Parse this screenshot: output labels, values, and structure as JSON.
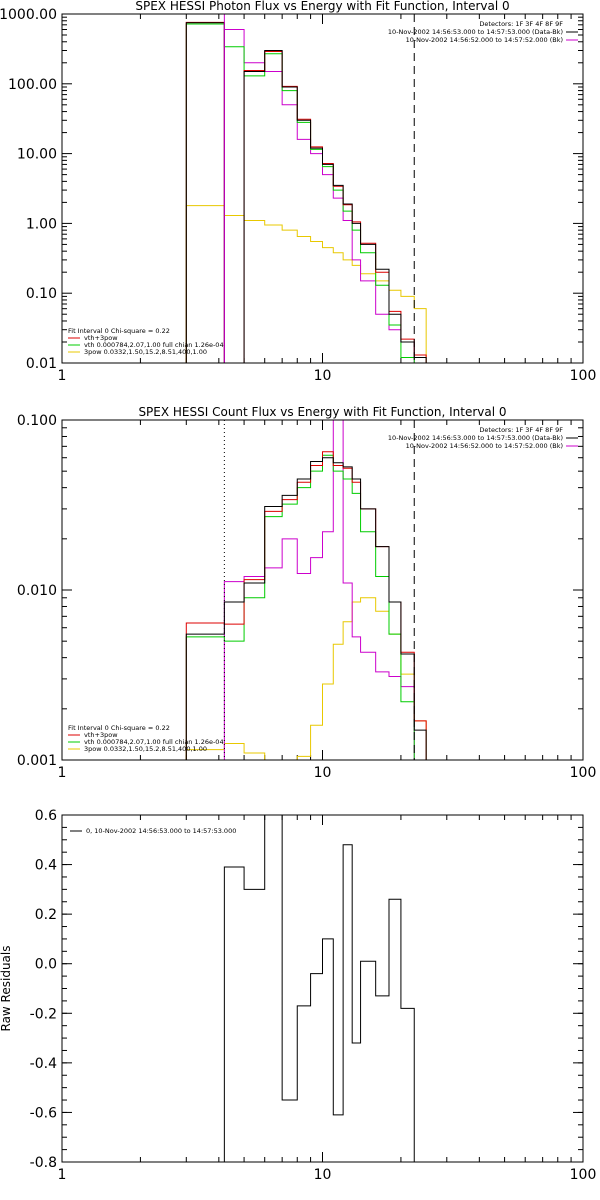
{
  "chart_data": [
    {
      "type": "line",
      "title": "SPEX HESSI Photon Flux vs Energy with Fit Function, Interval 0",
      "xlabel": "",
      "ylabel": "",
      "x_scale": "log",
      "y_scale": "log",
      "xlim": [
        1,
        100
      ],
      "ylim": [
        0.01,
        1000
      ],
      "x_ticks": [
        1,
        10,
        100
      ],
      "x_tick_labels": [
        "1",
        "10",
        "100"
      ],
      "y_ticks": [
        0.01,
        0.1,
        1,
        10,
        100,
        1000
      ],
      "y_tick_labels": [
        "0.01",
        "0.10",
        "1.00",
        "10.00",
        "100.00",
        "1000.00"
      ],
      "vlines": [
        {
          "x": 4.2,
          "style": "solid",
          "color": "#cc00cc"
        },
        {
          "x": 22.5,
          "style": "dashed",
          "color": "#000000"
        }
      ],
      "edges": [
        3.0,
        4.2,
        5.0,
        6.0,
        7.0,
        8.0,
        9.0,
        10.0,
        11.0,
        12.0,
        13.0,
        14.0,
        16.0,
        18.0,
        20.0,
        22.5,
        25.0
      ],
      "series": [
        {
          "name": "data",
          "color": "#000000",
          "values": [
            750,
            0,
            150,
            300,
            90,
            30,
            12,
            7,
            3.5,
            1.9,
            1.0,
            0.5,
            0.22,
            0.05,
            0.02,
            0.012
          ]
        },
        {
          "name": "vth+3pow",
          "color": "#dd0000",
          "values": [
            760,
            0,
            155,
            290,
            92,
            31,
            12.5,
            7.2,
            3.4,
            1.85,
            1.05,
            0.52,
            0.2,
            0.055,
            0.022,
            0.013
          ]
        },
        {
          "name": "vth",
          "color": "#00cc00",
          "values": [
            720,
            340,
            130,
            270,
            80,
            28,
            11.5,
            6.5,
            3.0,
            1.5,
            0.8,
            0.38,
            0.13,
            0.035,
            0.012,
            0.008
          ]
        },
        {
          "name": "3pow",
          "color": "#e8c800",
          "values": [
            1.8,
            1.3,
            1.1,
            0.95,
            0.8,
            0.65,
            0.55,
            0.45,
            0.38,
            0.3,
            0.25,
            0.19,
            0.15,
            0.11,
            0.09,
            0.06
          ]
        },
        {
          "name": "bkg",
          "color": "#cc00cc",
          "values": [
            0,
            600,
            200,
            150,
            50,
            16,
            10,
            5,
            2.3,
            1.1,
            0.3,
            0.15,
            0.05,
            0.03,
            0.02,
            0.0
          ]
        }
      ],
      "legend_right": [
        "Detectors: 1F 3F 4F 8F 9F",
        "10-Nov-2002 14:56:53.000 to 14:57:53.000 (Data-Bk)",
        "10-Nov-2002 14:56:52.000 to 14:57:52.000 (Bk)"
      ],
      "legend_left": [
        "Fit Interval 0   Chi-square = 0.22",
        "vth+3pow",
        "vth 0.000784,2.07,1.00   full chian 1.26e-04",
        "3pow 0.0332,1.50,15.2,8.51,400,1.00"
      ]
    },
    {
      "type": "line",
      "title": "SPEX HESSI Count Flux vs Energy with Fit Function, Interval 0",
      "xlabel": "",
      "ylabel": "",
      "x_scale": "log",
      "y_scale": "log",
      "xlim": [
        1,
        100
      ],
      "ylim": [
        0.001,
        0.1
      ],
      "x_ticks": [
        1,
        10,
        100
      ],
      "x_tick_labels": [
        "1",
        "10",
        "100"
      ],
      "y_ticks": [
        0.001,
        0.01,
        0.1
      ],
      "y_tick_labels": [
        "0.001",
        "0.010",
        "0.100"
      ],
      "vlines": [
        {
          "x": 4.2,
          "style": "dotted",
          "color": "#000000"
        },
        {
          "x": 22.5,
          "style": "dashed",
          "color": "#000000"
        }
      ],
      "edges": [
        3.0,
        4.2,
        5.0,
        6.0,
        7.0,
        8.0,
        9.0,
        10.0,
        11.0,
        12.0,
        13.0,
        14.0,
        16.0,
        18.0,
        20.0,
        22.5,
        25.0
      ],
      "series": [
        {
          "name": "data",
          "color": "#000000",
          "values": [
            0.0055,
            0.0085,
            0.011,
            0.031,
            0.036,
            0.045,
            0.057,
            0.06,
            0.056,
            0.053,
            0.045,
            0.03,
            0.018,
            0.0085,
            0.0042,
            0.0015
          ]
        },
        {
          "name": "vth+3pow",
          "color": "#dd0000",
          "values": [
            0.0064,
            0.0063,
            0.0115,
            0.029,
            0.034,
            0.043,
            0.054,
            0.065,
            0.054,
            0.052,
            0.043,
            0.03,
            0.018,
            0.0085,
            0.0043,
            0.0017
          ]
        },
        {
          "name": "vth",
          "color": "#00cc00",
          "values": [
            0.0053,
            0.005,
            0.009,
            0.027,
            0.032,
            0.04,
            0.05,
            0.062,
            0.05,
            0.045,
            0.037,
            0.022,
            0.012,
            0.0055,
            0.0022,
            0.0009
          ]
        },
        {
          "name": "3pow",
          "color": "#e8c800",
          "values": [
            0.00115,
            0.00125,
            0.0011,
            0.00095,
            0.0009,
            0.00105,
            0.0016,
            0.0028,
            0.0048,
            0.0065,
            0.0085,
            0.009,
            0.0075,
            0.0055,
            0.0032,
            0.0017
          ]
        },
        {
          "name": "bkg",
          "color": "#cc00cc",
          "values": [
            0.0,
            0.0112,
            0.012,
            0.0135,
            0.02,
            0.0125,
            0.0155,
            0.022,
            0.1,
            0.011,
            0.0053,
            0.0043,
            0.0033,
            0.0031,
            0.0027,
            0.0
          ]
        }
      ],
      "legend_right": [
        "Detectors: 1F 3F 4F 8F 9F",
        "10-Nov-2002 14:56:53.000 to 14:57:53.000 (Data-Bk)",
        "10-Nov-2002 14:56:52.000 to 14:57:52.000 (Bk)"
      ],
      "legend_left": [
        "Fit Interval 0   Chi-square = 0.22",
        "vth+3pow",
        "vth 0.000784,2.07,1.00   full chian 1.26e-04",
        "3pow 0.0332,1.50,15.2,8.51,400,1.00"
      ]
    },
    {
      "type": "line",
      "title": "",
      "xlabel": "",
      "ylabel": "Raw Residuals",
      "x_scale": "log",
      "y_scale": "linear",
      "xlim": [
        1,
        100
      ],
      "ylim": [
        -0.8,
        0.6
      ],
      "x_ticks": [
        1,
        10,
        100
      ],
      "x_tick_labels": [
        "1",
        "10",
        "100"
      ],
      "y_ticks": [
        -0.8,
        -0.6,
        -0.4,
        -0.2,
        0,
        0.2,
        0.4,
        0.6
      ],
      "y_tick_labels": [
        "-0.8",
        "-0.6",
        "-0.4",
        "-0.2",
        "0.0",
        "0.2",
        "0.4",
        "0.6"
      ],
      "edges": [
        4.2,
        5.0,
        6.0,
        7.0,
        8.0,
        9.0,
        10.0,
        11.0,
        12.0,
        13.0,
        14.0,
        16.0,
        18.0,
        20.0,
        22.5
      ],
      "series": [
        {
          "name": "0, 10-Nov-2002 14:56:53.000 to 14:57:53.000",
          "color": "#000000",
          "values": [
            0.39,
            0.3,
            0.61,
            -0.55,
            -0.17,
            -0.04,
            0.1,
            -0.61,
            0.48,
            -0.32,
            0.01,
            -0.13,
            0.26,
            -0.18
          ]
        }
      ],
      "legend_left": [
        "0, 10-Nov-2002 14:56:53.000 to 14:57:53.000"
      ]
    }
  ]
}
